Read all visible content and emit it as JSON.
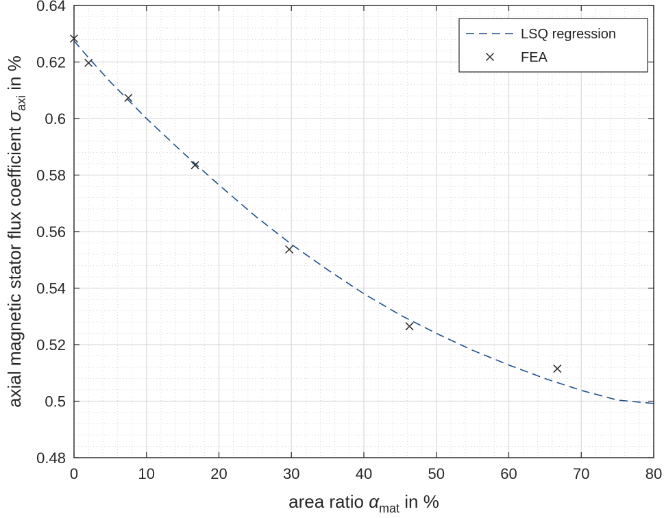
{
  "chart_data": {
    "type": "line",
    "xlim": [
      0,
      80
    ],
    "ylim": [
      0.48,
      0.64
    ],
    "x_ticks": [
      0,
      10,
      20,
      30,
      40,
      50,
      60,
      70,
      80
    ],
    "y_ticks": [
      0.48,
      0.5,
      0.52,
      0.54,
      0.56,
      0.58,
      0.6,
      0.62,
      0.64
    ],
    "x_tick_labels": [
      "0",
      "10",
      "20",
      "30",
      "40",
      "50",
      "60",
      "70",
      "80"
    ],
    "y_tick_labels": [
      "0.48",
      "0.5",
      "0.52",
      "0.54",
      "0.56",
      "0.58",
      "0.6",
      "0.62",
      "0.64"
    ],
    "xlabel": {
      "prefix": "area ratio ",
      "symbol": "α",
      "subscript": "mat",
      "suffix": " in %"
    },
    "ylabel": {
      "prefix": "axial magnetic stator flux coefficient ",
      "symbol": "σ",
      "subscript": "axi",
      "suffix": " in %"
    },
    "grid": true,
    "minor_grid": true,
    "legend_position": "top-right",
    "series": [
      {
        "name": "LSQ regression",
        "style": "dashed-line",
        "color": "#1f4e8c",
        "x": [
          0,
          2,
          5,
          10,
          15,
          20,
          25,
          30,
          35,
          40,
          45,
          50,
          55,
          60,
          65,
          70,
          75,
          80
        ],
        "y": [
          0.6275,
          0.6215,
          0.613,
          0.6,
          0.588,
          0.5765,
          0.5655,
          0.5555,
          0.5465,
          0.538,
          0.5305,
          0.524,
          0.518,
          0.5128,
          0.508,
          0.5038,
          0.5004,
          0.4992
        ]
      },
      {
        "name": "FEA",
        "style": "x-markers",
        "color": "#262626",
        "x": [
          0,
          2,
          7.5,
          16.7,
          29.7,
          46.3,
          66.7
        ],
        "y": [
          0.6283,
          0.6197,
          0.6073,
          0.5835,
          0.5537,
          0.5265,
          0.5115
        ]
      }
    ]
  }
}
